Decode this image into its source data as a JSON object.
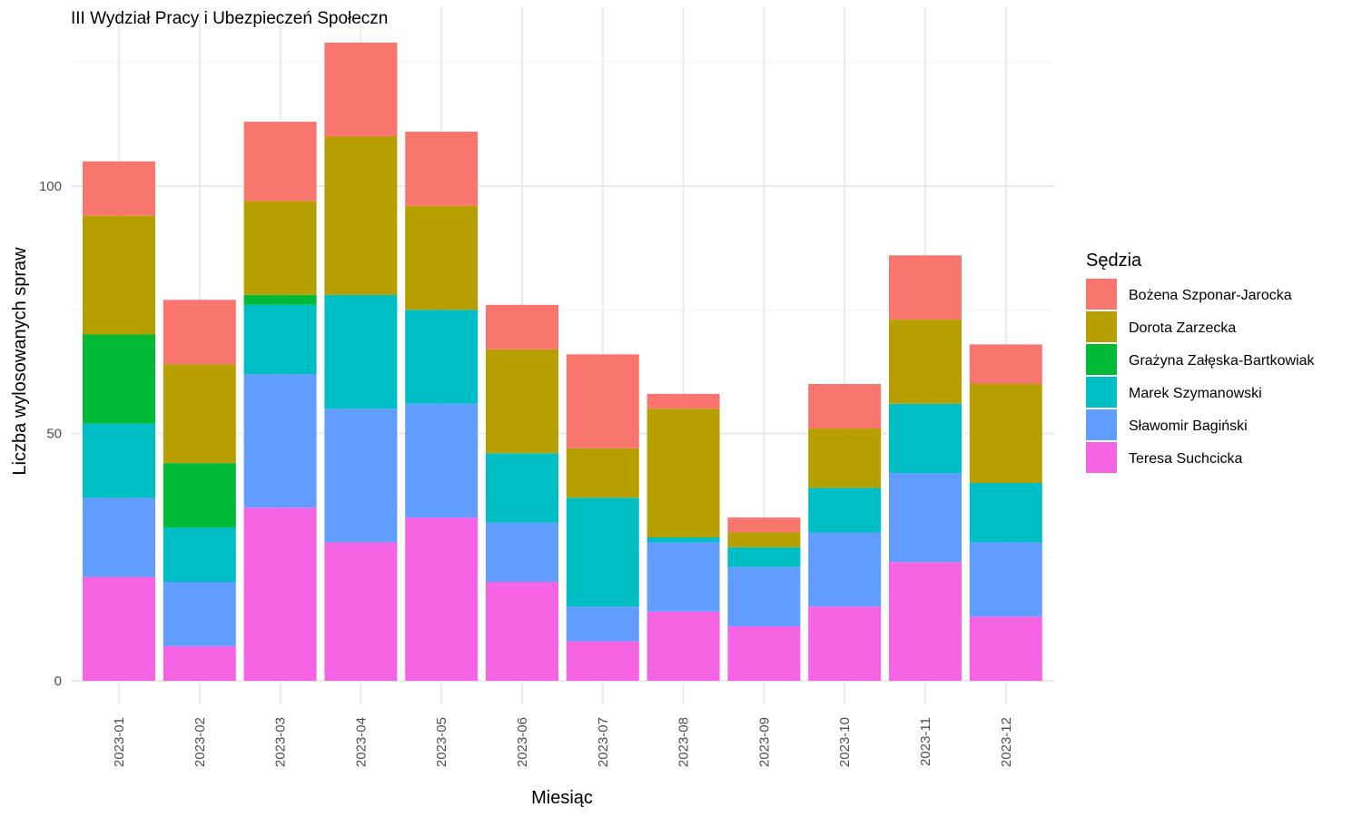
{
  "chart_data": {
    "type": "bar",
    "stacked": true,
    "title": "III Wydział Pracy i Ubezpieczeń Społeczn",
    "xlabel": "Miesiąc",
    "ylabel": "Liczba wylosowanych spraw",
    "ylim": [
      0,
      130
    ],
    "yticks": [
      0,
      50,
      100
    ],
    "grid": true,
    "legend_title": "Sędzia",
    "legend_position": "right",
    "categories": [
      "2023-01",
      "2023-02",
      "2023-03",
      "2023-04",
      "2023-05",
      "2023-06",
      "2023-07",
      "2023-08",
      "2023-09",
      "2023-10",
      "2023-11",
      "2023-12"
    ],
    "series": [
      {
        "name": "Teresa Suchcicka",
        "color": "#F564E3",
        "values": [
          21,
          7,
          35,
          28,
          33,
          20,
          8,
          14,
          11,
          15,
          24,
          13
        ]
      },
      {
        "name": "Sławomir Bagiński",
        "color": "#619CFF",
        "values": [
          16,
          13,
          27,
          27,
          23,
          12,
          7,
          14,
          12,
          15,
          18,
          15
        ]
      },
      {
        "name": "Marek Szymanowski",
        "color": "#00BFC4",
        "values": [
          15,
          11,
          14,
          23,
          19,
          14,
          22,
          1,
          4,
          9,
          14,
          12
        ]
      },
      {
        "name": "Grażyna Załęska-Bartkowiak",
        "color": "#00BA38",
        "values": [
          18,
          13,
          2,
          0,
          0,
          0,
          0,
          0,
          0,
          0,
          0,
          0
        ]
      },
      {
        "name": "Dorota Zarzecka",
        "color": "#B79F00",
        "values": [
          24,
          20,
          19,
          32,
          21,
          21,
          10,
          26,
          3,
          12,
          17,
          20
        ]
      },
      {
        "name": "Bożena Szponar-Jarocka",
        "color": "#F8766D",
        "values": [
          11,
          13,
          16,
          19,
          15,
          9,
          19,
          3,
          3,
          9,
          13,
          8
        ]
      }
    ],
    "legend_order": [
      "Bożena Szponar-Jarocka",
      "Dorota Zarzecka",
      "Grażyna Załęska-Bartkowiak",
      "Marek Szymanowski",
      "Sławomir Bagiński",
      "Teresa Suchcicka"
    ]
  }
}
